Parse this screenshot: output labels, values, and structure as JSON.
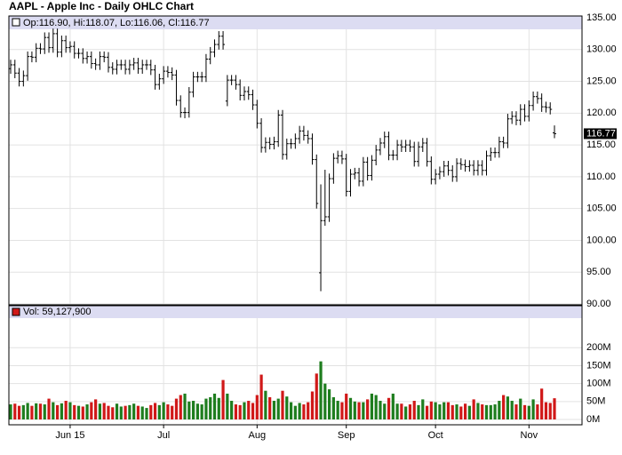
{
  "chart_data": [
    {
      "type": "ohlc",
      "title": "AAPL - Apple Inc - Daily OHLC Chart",
      "subtitle": "Op:116.90, Hi:118.07, Lo:116.06, Cl:116.77",
      "last_price_label": "116.77",
      "color": "#000000",
      "grid": true,
      "ylim": [
        90,
        135
      ],
      "yticks": [
        {
          "value": 90,
          "label": "90.00"
        },
        {
          "value": 95,
          "label": "95.00"
        },
        {
          "value": 100,
          "label": "100.00"
        },
        {
          "value": 105,
          "label": "105.00"
        },
        {
          "value": 110,
          "label": "110.00"
        },
        {
          "value": 115,
          "label": "115.00"
        },
        {
          "value": 120,
          "label": "120.00"
        },
        {
          "value": 125,
          "label": "125.00"
        },
        {
          "value": 130,
          "label": "130.00"
        },
        {
          "value": 135,
          "label": "135.00"
        }
      ],
      "open": [
        127.0,
        127.6,
        126.3,
        125.0,
        125.9,
        128.9,
        128.8,
        130.2,
        130.1,
        131.9,
        130.3,
        132.5,
        129.6,
        131.4,
        130.3,
        130.5,
        129.4,
        129.4,
        128.6,
        128.9,
        127.8,
        127.6,
        128.9,
        128.8,
        127.2,
        126.9,
        127.6,
        127.6,
        126.9,
        127.6,
        127.9,
        127.0,
        127.6,
        127.6,
        126.8,
        124.5,
        125.4,
        126.6,
        126.4,
        126.0,
        122.0,
        120.1,
        120.1,
        123.3,
        125.7,
        125.7,
        125.7,
        128.5,
        129.6,
        130.8,
        132.1,
        121.9,
        125.2,
        125.2,
        124.5,
        122.8,
        123.4,
        122.9,
        121.3,
        118.4,
        114.6,
        115.4,
        115.1,
        115.5,
        119.7,
        113.5,
        115.2,
        115.2,
        116.0,
        117.2,
        116.5,
        116.0,
        112.7,
        94.9,
        103.1,
        103.7,
        109.7,
        112.9,
        113.3,
        112.8,
        107.7,
        110.4,
        110.6,
        109.3,
        112.3,
        110.2,
        112.6,
        114.2,
        115.3,
        116.3,
        113.4,
        113.4,
        115.0,
        114.7,
        115.0,
        114.7,
        112.4,
        114.7,
        115.3,
        112.4,
        109.6,
        110.4,
        110.8,
        111.7,
        111.0,
        110.0,
        112.1,
        111.9,
        111.6,
        111.8,
        111.0,
        111.8,
        111.0,
        113.3,
        113.8,
        113.8,
        115.5,
        115.3,
        119.1,
        119.5,
        118.9,
        120.6,
        119.5,
        121.2,
        122.6,
        122.3,
        121.0,
        120.9,
        116.9
      ],
      "high": [
        128.4,
        128.4,
        127.1,
        126.7,
        129.7,
        129.7,
        131.0,
        131.0,
        132.7,
        132.7,
        133.3,
        133.3,
        132.2,
        132.2,
        131.3,
        131.3,
        130.2,
        130.2,
        129.7,
        129.7,
        128.6,
        129.7,
        129.7,
        129.6,
        128.0,
        128.4,
        128.4,
        128.4,
        128.4,
        128.7,
        128.7,
        128.4,
        128.4,
        128.4,
        127.6,
        126.2,
        127.4,
        127.4,
        127.2,
        126.8,
        122.8,
        120.9,
        124.1,
        126.5,
        126.5,
        126.5,
        129.3,
        130.4,
        131.6,
        132.9,
        132.9,
        126.0,
        126.0,
        126.0,
        125.3,
        124.2,
        124.2,
        123.7,
        122.1,
        119.2,
        116.2,
        116.2,
        116.3,
        120.5,
        120.5,
        116.0,
        116.0,
        116.8,
        118.0,
        118.0,
        117.3,
        116.8,
        113.5,
        108.8,
        111.1,
        110.5,
        113.7,
        114.1,
        114.1,
        113.6,
        111.2,
        111.4,
        111.4,
        113.1,
        113.1,
        113.4,
        115.0,
        116.1,
        117.1,
        117.1,
        114.2,
        115.8,
        115.8,
        115.8,
        115.8,
        115.5,
        115.5,
        116.1,
        116.1,
        113.2,
        111.2,
        111.6,
        112.5,
        112.5,
        111.8,
        112.9,
        112.9,
        112.7,
        112.6,
        112.6,
        112.6,
        112.6,
        114.1,
        114.6,
        114.6,
        116.3,
        116.3,
        119.9,
        120.3,
        120.3,
        121.4,
        121.4,
        122.0,
        123.4,
        123.4,
        123.1,
        121.8,
        121.7,
        118.07
      ],
      "low": [
        126.2,
        125.5,
        124.2,
        124.2,
        125.1,
        128.0,
        128.0,
        129.3,
        129.3,
        129.5,
        129.5,
        128.8,
        128.8,
        129.5,
        129.5,
        128.6,
        128.6,
        127.8,
        127.8,
        127.0,
        126.8,
        126.8,
        128.0,
        126.4,
        126.1,
        126.1,
        126.8,
        126.1,
        126.1,
        126.8,
        126.2,
        126.2,
        126.8,
        126.0,
        123.7,
        123.7,
        124.6,
        125.6,
        125.2,
        121.2,
        119.3,
        119.2,
        119.3,
        122.5,
        124.9,
        124.9,
        124.9,
        127.7,
        128.8,
        130.0,
        130.0,
        121.1,
        124.4,
        123.7,
        122.0,
        122.0,
        122.1,
        120.5,
        117.6,
        113.8,
        113.8,
        114.3,
        114.3,
        114.7,
        112.7,
        112.7,
        114.4,
        114.4,
        115.2,
        115.7,
        115.2,
        111.9,
        105.0,
        92.0,
        102.3,
        102.9,
        108.9,
        112.1,
        112.0,
        106.9,
        106.9,
        109.6,
        108.5,
        108.5,
        109.4,
        109.4,
        111.8,
        113.4,
        114.5,
        112.6,
        112.6,
        112.6,
        113.9,
        113.9,
        113.9,
        111.6,
        111.6,
        113.9,
        111.6,
        108.8,
        108.8,
        109.6,
        110.0,
        110.2,
        109.2,
        109.2,
        111.1,
        110.8,
        110.8,
        110.2,
        110.2,
        110.2,
        110.2,
        112.5,
        113.0,
        113.0,
        114.5,
        114.5,
        118.3,
        118.1,
        118.1,
        118.7,
        118.7,
        120.4,
        121.5,
        120.2,
        120.1,
        119.8,
        116.06
      ],
      "close": [
        127.6,
        126.3,
        125.0,
        125.9,
        128.9,
        128.8,
        130.2,
        130.1,
        131.9,
        130.3,
        132.5,
        129.6,
        131.4,
        130.3,
        130.5,
        129.4,
        129.4,
        128.6,
        128.9,
        127.8,
        127.6,
        128.9,
        128.8,
        127.2,
        126.9,
        127.6,
        127.6,
        126.9,
        127.6,
        127.9,
        127.0,
        127.6,
        127.6,
        126.8,
        124.5,
        125.4,
        126.6,
        126.4,
        126.0,
        122.0,
        120.1,
        120.1,
        123.3,
        125.7,
        125.7,
        125.7,
        128.5,
        129.6,
        130.8,
        132.1,
        130.8,
        125.2,
        125.2,
        124.5,
        122.8,
        123.4,
        122.9,
        121.3,
        118.4,
        114.6,
        115.4,
        115.1,
        115.5,
        119.7,
        113.5,
        115.2,
        115.2,
        116.0,
        117.2,
        116.5,
        116.0,
        112.7,
        105.8,
        103.1,
        103.7,
        109.7,
        112.9,
        113.3,
        112.8,
        107.7,
        110.4,
        110.6,
        109.3,
        112.3,
        110.2,
        112.6,
        114.2,
        115.3,
        116.3,
        113.4,
        113.4,
        115.0,
        114.7,
        115.0,
        114.7,
        112.4,
        114.7,
        115.3,
        112.4,
        109.6,
        110.4,
        110.8,
        111.7,
        111.0,
        110.0,
        112.1,
        111.9,
        111.6,
        111.8,
        111.0,
        111.8,
        111.0,
        113.3,
        113.8,
        113.8,
        115.5,
        115.3,
        119.1,
        119.5,
        118.9,
        120.6,
        119.5,
        121.2,
        122.6,
        122.3,
        121.0,
        120.9,
        120.6,
        116.77
      ]
    },
    {
      "type": "bar",
      "title": "Vol: 59,127,900",
      "up_color": "#1e7d1e",
      "down_color": "#d01818",
      "grid": true,
      "ylim": [
        0,
        285
      ],
      "yticks": [
        {
          "value": 0,
          "label": "0M"
        },
        {
          "value": 50,
          "label": "50M"
        },
        {
          "value": 100,
          "label": "100M"
        },
        {
          "value": 150,
          "label": "150M"
        },
        {
          "value": 200,
          "label": "200M"
        }
      ],
      "xticks": [
        {
          "value": 14,
          "label": "Jun 15"
        },
        {
          "value": 36,
          "label": "Jul"
        },
        {
          "value": 58,
          "label": "Aug"
        },
        {
          "value": 79,
          "label": "Sep"
        },
        {
          "value": 100,
          "label": "Oct"
        },
        {
          "value": 122,
          "label": "Nov"
        }
      ],
      "values": [
        42,
        44,
        38,
        40,
        46,
        38,
        45,
        44,
        42,
        58,
        48,
        40,
        45,
        52,
        48,
        40,
        38,
        36,
        42,
        48,
        56,
        44,
        46,
        38,
        34,
        44,
        36,
        38,
        40,
        44,
        38,
        36,
        32,
        40,
        46,
        40,
        48,
        42,
        38,
        58,
        68,
        72,
        50,
        52,
        44,
        42,
        58,
        62,
        72,
        60,
        110,
        72,
        52,
        42,
        40,
        48,
        52,
        46,
        68,
        125,
        80,
        62,
        52,
        58,
        80,
        64,
        48,
        38,
        46,
        42,
        48,
        78,
        128,
        162,
        100,
        84,
        62,
        52,
        48,
        72,
        60,
        50,
        48,
        48,
        56,
        72,
        68,
        52,
        44,
        60,
        72,
        44,
        44,
        36,
        42,
        52,
        40,
        56,
        38,
        50,
        48,
        42,
        48,
        48,
        40,
        42,
        36,
        44,
        38,
        56,
        46,
        42,
        40,
        40,
        42,
        52,
        68,
        64,
        52,
        42,
        58,
        40,
        38,
        56,
        42,
        86,
        48,
        46,
        59.1279
      ]
    }
  ]
}
